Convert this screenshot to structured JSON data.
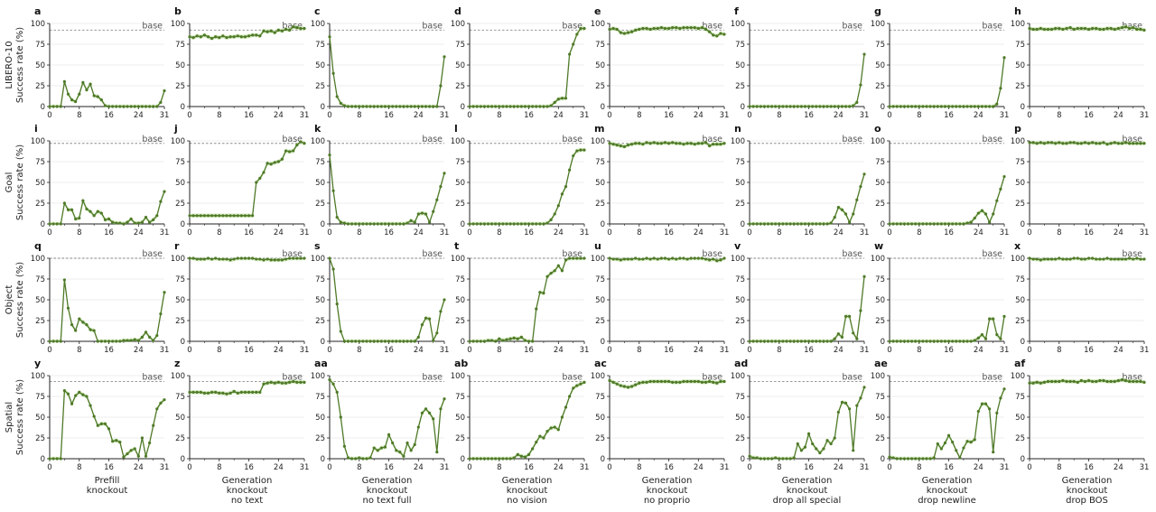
{
  "chart_data": {
    "type": "line",
    "grid": "horizontal",
    "base_label": "base",
    "series_color": "#4f7a28",
    "band_color": "#bfe0a0",
    "x_ticks": [
      0,
      8,
      16,
      24,
      31
    ],
    "extra_x_ticks": [
      4,
      12,
      20,
      28
    ],
    "y_ticks": [
      0,
      25,
      50,
      75,
      100
    ],
    "ylim": [
      0,
      100
    ],
    "xlim": [
      0,
      31
    ],
    "row_labels": [
      [
        "LIBERO-10",
        "Success rate (%)"
      ],
      [
        "Goal",
        "Success rate (%)"
      ],
      [
        "Object",
        "Success rate (%)"
      ],
      [
        "Spatial",
        "Success rate (%)"
      ]
    ],
    "column_labels": [
      [
        "Prefill",
        "knockout"
      ],
      [
        "Generation",
        "knockout",
        "no text"
      ],
      [
        "Generation",
        "knockout",
        "no text full"
      ],
      [
        "Generation",
        "knockout",
        "no vision"
      ],
      [
        "Generation",
        "knockout",
        "no proprio"
      ],
      [
        "Generation",
        "knockout",
        "drop all special"
      ],
      [
        "Generation",
        "knockout",
        "drop newline"
      ],
      [
        "Generation",
        "knockout",
        "drop BOS"
      ]
    ],
    "panel_labels": [
      [
        "a",
        "b",
        "c",
        "d",
        "e",
        "f",
        "g",
        "h"
      ],
      [
        "i",
        "j",
        "k",
        "l",
        "m",
        "n",
        "o",
        "p"
      ],
      [
        "q",
        "r",
        "s",
        "t",
        "u",
        "v",
        "w",
        "x"
      ],
      [
        "y",
        "z",
        "aa",
        "ab",
        "ac",
        "ad",
        "ae",
        "af"
      ]
    ],
    "base_values": [
      92,
      97,
      100,
      93
    ],
    "series": [
      [
        [
          0,
          0,
          0,
          0,
          30,
          15,
          8,
          6,
          15,
          29,
          20,
          27,
          13,
          12,
          8,
          1,
          0,
          0,
          0,
          0,
          0,
          0,
          0,
          0,
          0,
          0,
          0,
          0,
          0,
          0,
          5,
          19
        ],
        [
          84,
          83,
          85,
          84,
          86,
          84,
          82,
          84,
          83,
          85,
          83,
          84,
          84,
          85,
          84,
          84,
          85,
          86,
          86,
          85,
          91,
          90,
          91,
          89,
          92,
          91,
          93,
          92,
          96,
          95,
          94,
          94
        ],
        [
          84,
          40,
          12,
          4,
          1,
          0,
          0,
          0,
          0,
          0,
          0,
          0,
          0,
          0,
          0,
          0,
          0,
          0,
          0,
          0,
          0,
          0,
          0,
          0,
          0,
          0,
          0,
          0,
          0,
          0,
          25,
          60
        ],
        [
          0,
          0,
          0,
          0,
          0,
          0,
          0,
          0,
          0,
          0,
          0,
          0,
          0,
          0,
          0,
          0,
          0,
          0,
          0,
          0,
          0,
          0,
          1,
          5,
          9,
          10,
          10,
          63,
          75,
          87,
          94,
          94
        ],
        [
          93,
          94,
          93,
          89,
          88,
          89,
          90,
          92,
          93,
          94,
          94,
          93,
          94,
          94,
          95,
          94,
          94,
          95,
          95,
          94,
          95,
          95,
          95,
          95,
          94,
          95,
          93,
          90,
          86,
          85,
          88,
          87
        ],
        [
          0,
          0,
          0,
          0,
          0,
          0,
          0,
          0,
          0,
          0,
          0,
          0,
          0,
          0,
          0,
          0,
          0,
          0,
          0,
          0,
          0,
          0,
          0,
          0,
          0,
          0,
          0,
          0,
          1,
          5,
          26,
          63
        ],
        [
          0,
          0,
          0,
          0,
          0,
          0,
          0,
          0,
          0,
          0,
          0,
          0,
          0,
          0,
          0,
          0,
          0,
          0,
          0,
          0,
          0,
          0,
          0,
          0,
          0,
          0,
          0,
          0,
          0,
          3,
          22,
          59
        ],
        [
          94,
          93,
          93,
          94,
          93,
          93,
          93,
          94,
          94,
          93,
          94,
          95,
          93,
          94,
          94,
          94,
          93,
          94,
          94,
          93,
          93,
          94,
          94,
          93,
          94,
          95,
          96,
          94,
          95,
          93,
          93,
          92
        ]
      ],
      [
        [
          0,
          0,
          0,
          0,
          25,
          17,
          17,
          6,
          7,
          28,
          18,
          15,
          10,
          15,
          13,
          5,
          6,
          2,
          1,
          1,
          0,
          2,
          6,
          1,
          1,
          2,
          8,
          2,
          5,
          10,
          27,
          39
        ],
        [
          10,
          10,
          10,
          10,
          10,
          10,
          10,
          10,
          10,
          10,
          10,
          10,
          10,
          10,
          10,
          10,
          10,
          10,
          50,
          55,
          62,
          73,
          72,
          74,
          75,
          78,
          88,
          87,
          88,
          95,
          99,
          97
        ],
        [
          83,
          40,
          8,
          2,
          1,
          0,
          0,
          0,
          0,
          0,
          0,
          0,
          0,
          0,
          0,
          0,
          0,
          0,
          0,
          0,
          0,
          1,
          4,
          2,
          12,
          13,
          12,
          2,
          15,
          29,
          45,
          61
        ],
        [
          0,
          0,
          0,
          0,
          0,
          0,
          0,
          0,
          0,
          0,
          0,
          0,
          0,
          0,
          0,
          0,
          0,
          0,
          0,
          0,
          0,
          1,
          5,
          12,
          22,
          36,
          45,
          65,
          82,
          88,
          89,
          89
        ],
        [
          97,
          96,
          95,
          94,
          93,
          95,
          96,
          97,
          97,
          96,
          98,
          97,
          98,
          97,
          97,
          98,
          97,
          98,
          97,
          97,
          96,
          97,
          97,
          96,
          97,
          97,
          98,
          94,
          96,
          96,
          96,
          97
        ],
        [
          0,
          0,
          0,
          0,
          0,
          0,
          0,
          0,
          0,
          0,
          0,
          0,
          0,
          0,
          0,
          0,
          0,
          0,
          0,
          0,
          0,
          0,
          1,
          8,
          20,
          17,
          12,
          2,
          12,
          29,
          45,
          60
        ],
        [
          0,
          0,
          0,
          0,
          0,
          0,
          0,
          0,
          0,
          0,
          0,
          0,
          0,
          0,
          0,
          0,
          0,
          0,
          0,
          0,
          0,
          1,
          2,
          7,
          13,
          16,
          12,
          2,
          12,
          28,
          42,
          57
        ],
        [
          98,
          98,
          97,
          98,
          97,
          98,
          98,
          97,
          98,
          97,
          97,
          98,
          98,
          97,
          97,
          98,
          97,
          98,
          97,
          97,
          98,
          96,
          97,
          98,
          97,
          97,
          98,
          97,
          97,
          97,
          97,
          97
        ]
      ],
      [
        [
          0,
          0,
          0,
          0,
          74,
          40,
          20,
          13,
          27,
          23,
          20,
          14,
          13,
          0,
          0,
          0,
          0,
          0,
          0,
          0,
          1,
          1,
          1,
          2,
          1,
          5,
          11,
          5,
          1,
          7,
          33,
          59
        ],
        [
          100,
          100,
          99,
          99,
          99,
          100,
          99,
          100,
          99,
          99,
          99,
          98,
          99,
          100,
          100,
          100,
          100,
          100,
          99,
          99,
          98,
          99,
          98,
          98,
          98,
          98,
          99,
          100,
          100,
          100,
          100,
          100
        ],
        [
          100,
          87,
          45,
          12,
          0,
          0,
          0,
          0,
          0,
          0,
          0,
          0,
          0,
          0,
          0,
          0,
          0,
          0,
          0,
          0,
          0,
          0,
          0,
          0,
          5,
          20,
          28,
          27,
          1,
          10,
          36,
          50
        ],
        [
          0,
          0,
          0,
          0,
          0,
          1,
          1,
          0,
          3,
          1,
          2,
          3,
          4,
          3,
          5,
          1,
          0,
          0,
          39,
          59,
          58,
          78,
          82,
          85,
          91,
          85,
          98,
          100,
          100,
          100,
          100,
          100
        ],
        [
          100,
          99,
          99,
          98,
          99,
          99,
          99,
          100,
          99,
          99,
          100,
          99,
          100,
          99,
          100,
          100,
          99,
          100,
          99,
          100,
          100,
          99,
          100,
          100,
          100,
          100,
          99,
          98,
          99,
          97,
          98,
          100
        ],
        [
          0,
          0,
          0,
          0,
          0,
          0,
          0,
          0,
          0,
          0,
          0,
          0,
          0,
          0,
          0,
          0,
          0,
          0,
          0,
          0,
          0,
          0,
          0,
          3,
          9,
          5,
          30,
          30,
          10,
          3,
          37,
          78
        ],
        [
          0,
          0,
          0,
          0,
          0,
          0,
          0,
          0,
          0,
          0,
          0,
          0,
          0,
          0,
          0,
          0,
          0,
          0,
          0,
          0,
          0,
          0,
          0,
          1,
          4,
          8,
          3,
          27,
          27,
          8,
          3,
          30
        ],
        [
          100,
          99,
          99,
          98,
          99,
          99,
          99,
          99,
          100,
          99,
          99,
          99,
          100,
          100,
          99,
          99,
          100,
          100,
          99,
          99,
          99,
          100,
          99,
          99,
          99,
          99,
          99,
          100,
          99,
          100,
          99,
          99
        ]
      ],
      [
        [
          0,
          0,
          0,
          0,
          82,
          78,
          66,
          76,
          80,
          77,
          75,
          64,
          51,
          40,
          42,
          42,
          36,
          21,
          22,
          20,
          2,
          6,
          10,
          12,
          3,
          25,
          3,
          19,
          40,
          60,
          67,
          71
        ],
        [
          80,
          80,
          80,
          80,
          79,
          79,
          80,
          80,
          79,
          79,
          78,
          79,
          81,
          79,
          80,
          80,
          80,
          80,
          80,
          80,
          90,
          91,
          92,
          91,
          92,
          91,
          91,
          92,
          93,
          92,
          92,
          92
        ],
        [
          95,
          90,
          80,
          50,
          15,
          1,
          0,
          0,
          1,
          0,
          0,
          1,
          13,
          10,
          13,
          14,
          29,
          19,
          10,
          8,
          3,
          19,
          10,
          17,
          38,
          55,
          60,
          55,
          48,
          8,
          60,
          72
        ],
        [
          0,
          0,
          0,
          0,
          0,
          0,
          0,
          0,
          0,
          0,
          0,
          0,
          1,
          5,
          3,
          2,
          5,
          12,
          20,
          27,
          25,
          33,
          37,
          38,
          35,
          50,
          62,
          75,
          85,
          88,
          90,
          92
        ],
        [
          94,
          92,
          90,
          88,
          87,
          86,
          87,
          89,
          91,
          92,
          92,
          93,
          93,
          93,
          93,
          93,
          93,
          92,
          92,
          92,
          93,
          93,
          93,
          93,
          93,
          92,
          92,
          93,
          92,
          91,
          93,
          93
        ],
        [
          3,
          1,
          1,
          0,
          0,
          0,
          0,
          1,
          0,
          0,
          0,
          0,
          1,
          18,
          10,
          14,
          30,
          18,
          12,
          7,
          12,
          22,
          18,
          25,
          56,
          68,
          67,
          60,
          10,
          64,
          73,
          86
        ],
        [
          2,
          1,
          0,
          0,
          0,
          0,
          0,
          0,
          0,
          0,
          0,
          0,
          1,
          18,
          12,
          19,
          28,
          20,
          10,
          1,
          13,
          21,
          20,
          23,
          57,
          66,
          66,
          60,
          8,
          55,
          73,
          84
        ],
        [
          91,
          91,
          92,
          91,
          92,
          93,
          93,
          93,
          93,
          94,
          93,
          93,
          93,
          92,
          94,
          93,
          94,
          93,
          93,
          94,
          94,
          93,
          93,
          93,
          94,
          95,
          94,
          93,
          93,
          93,
          93,
          92
        ]
      ]
    ]
  }
}
